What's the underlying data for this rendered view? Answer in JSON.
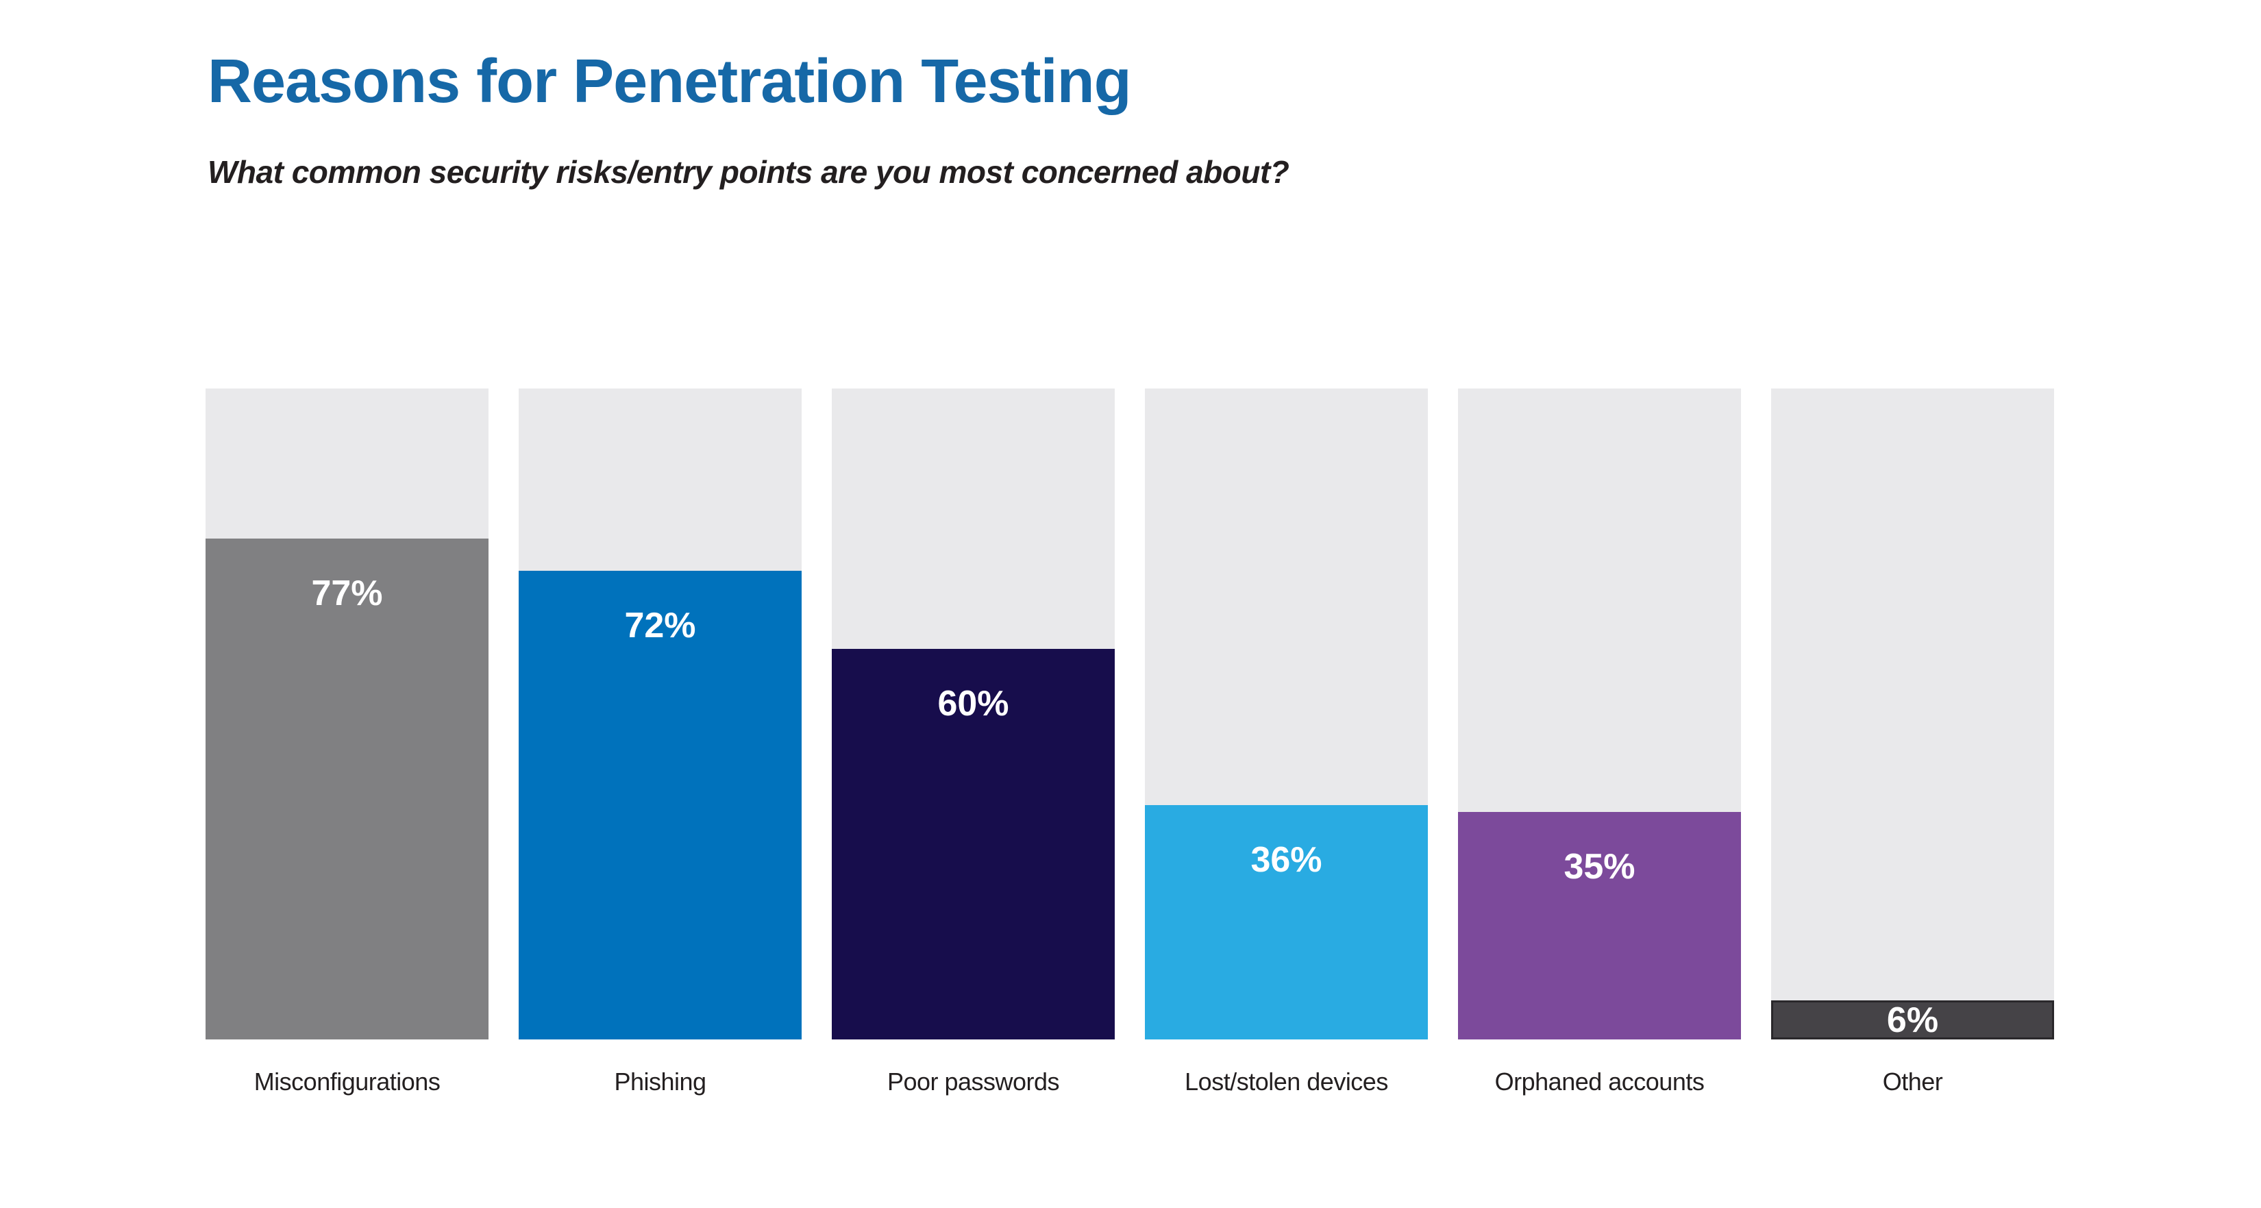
{
  "header": {
    "title": "Reasons for Penetration Testing",
    "subtitle": "What common security risks/entry points are you most concerned about?"
  },
  "chart_data": {
    "type": "bar",
    "title": "Reasons for Penetration Testing",
    "question": "What common security risks/entry points are you most concerned about?",
    "categories": [
      "Misconfigurations",
      "Phishing",
      "Poor passwords",
      "Lost/stolen devices",
      "Orphaned accounts",
      "Other"
    ],
    "values": [
      77,
      72,
      60,
      36,
      35,
      6
    ],
    "value_labels": [
      "77%",
      "72%",
      "60%",
      "36%",
      "35%",
      "6%"
    ],
    "unit": "%",
    "ylim": [
      0,
      100
    ],
    "orientation": "vertical",
    "grid": false,
    "legend": "none",
    "style": {
      "title_color": "#1668a7",
      "text_color": "#231f20",
      "track_color": "#e9e9eb",
      "value_label_color": "#ffffff",
      "bar_colors": [
        "#808082",
        "#0072bc",
        "#170d4c",
        "#29abe2",
        "#7c4a9b",
        "#454347"
      ],
      "bar_border_colors": [
        null,
        null,
        null,
        null,
        null,
        "#2a282b"
      ],
      "small_value_threshold": 12
    }
  }
}
